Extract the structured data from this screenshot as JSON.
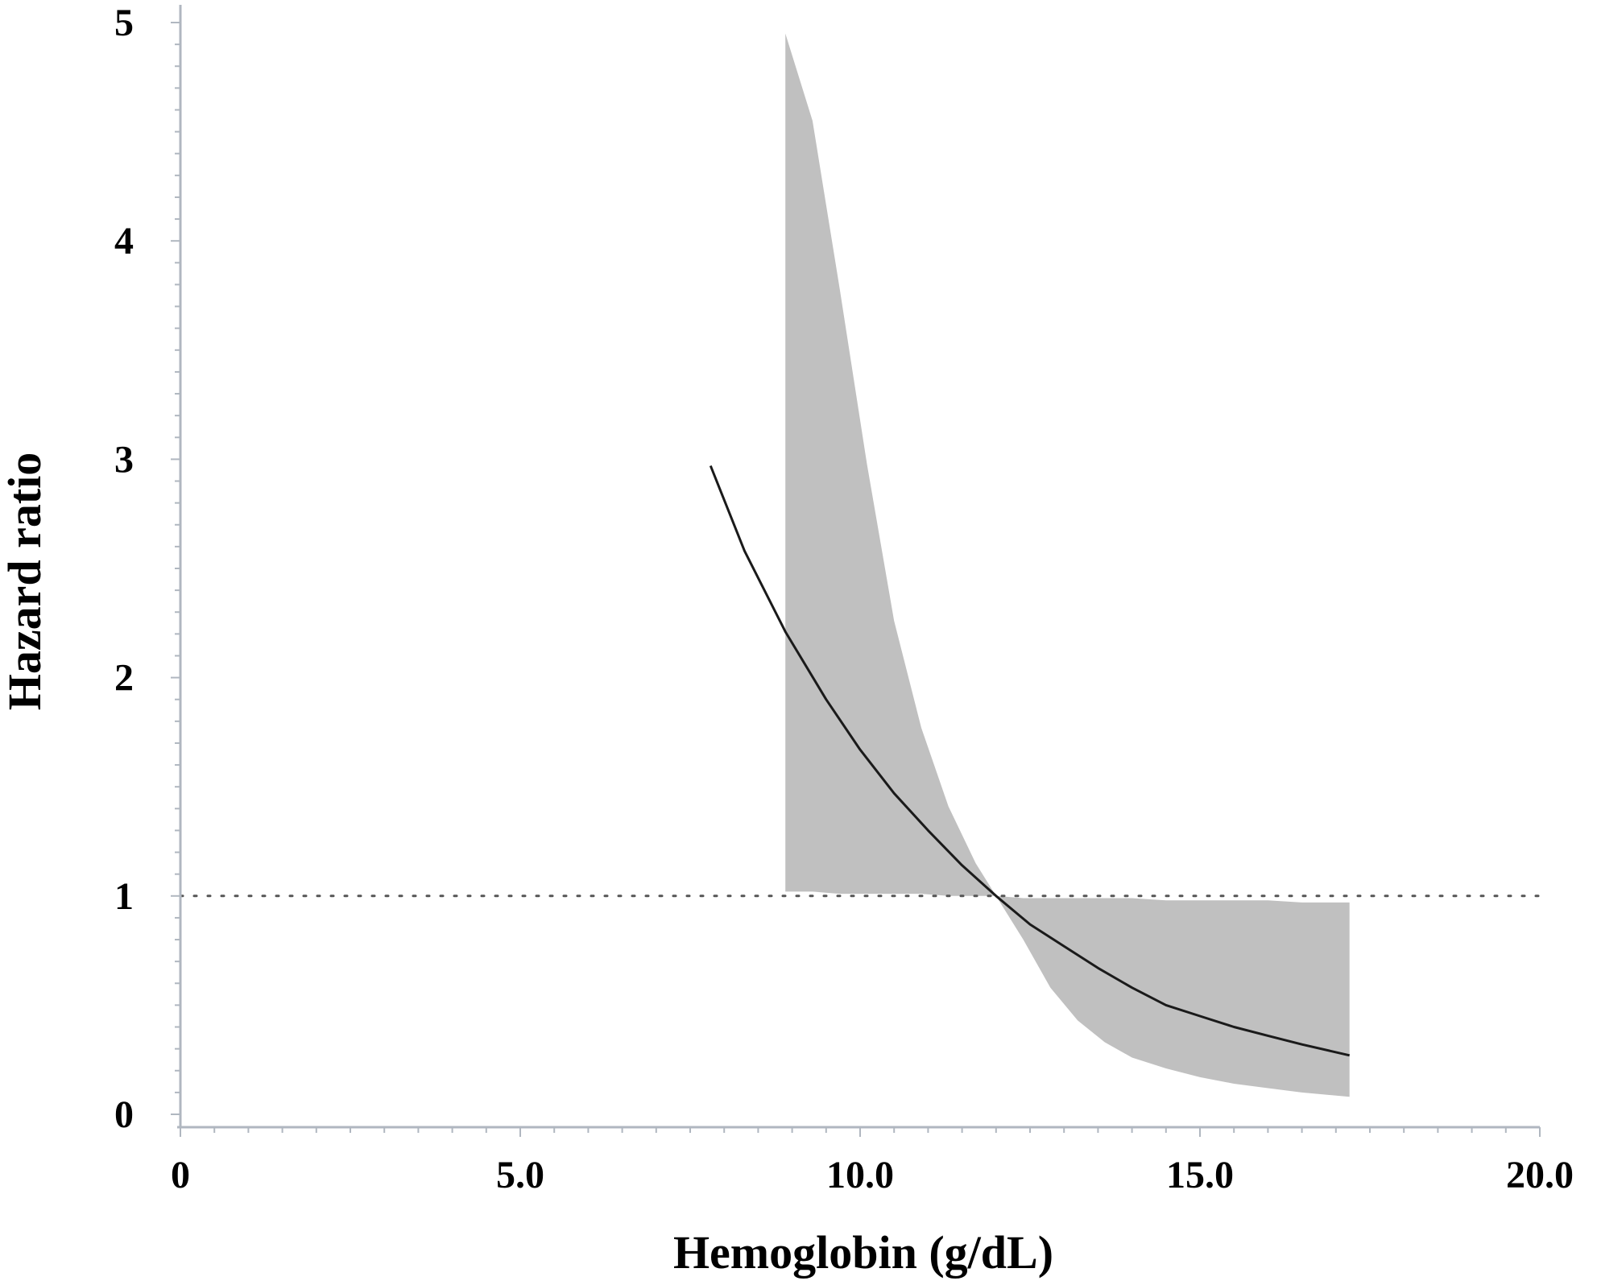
{
  "chart_data": {
    "type": "line",
    "title": "",
    "xlabel": "Hemoglobin (g/dL)",
    "ylabel": "Hazard ratio",
    "xlim": [
      0,
      20
    ],
    "ylim": [
      0,
      5
    ],
    "x_ticks": [
      0,
      5,
      10,
      15,
      20
    ],
    "x_tick_labels": [
      "0",
      "5.0",
      "10.0",
      "15.0",
      "20.0"
    ],
    "y_ticks": [
      0,
      1,
      2,
      3,
      4,
      5
    ],
    "y_tick_labels": [
      "0",
      "1",
      "2",
      "3",
      "4",
      "5"
    ],
    "reference_line": {
      "y": 1,
      "style": "dotted"
    },
    "series": [
      {
        "role": "hazard-ratio",
        "x": [
          7.8,
          8.3,
          8.9,
          9.5,
          10.0,
          10.5,
          11.0,
          11.5,
          12.0,
          12.5,
          13.0,
          13.5,
          14.0,
          14.5,
          15.0,
          15.5,
          16.0,
          16.5,
          17.2
        ],
        "y": [
          2.97,
          2.58,
          2.21,
          1.9,
          1.67,
          1.47,
          1.3,
          1.14,
          1.0,
          0.87,
          0.77,
          0.67,
          0.58,
          0.5,
          0.45,
          0.4,
          0.36,
          0.32,
          0.27
        ]
      }
    ],
    "confidence_band": {
      "x": [
        8.9,
        9.3,
        9.7,
        10.1,
        10.5,
        10.9,
        11.3,
        11.7,
        12.0,
        12.4,
        12.8,
        13.2,
        13.6,
        14.0,
        14.5,
        15.0,
        15.5,
        16.0,
        16.5,
        17.2
      ],
      "upper": [
        4.95,
        4.55,
        3.78,
        2.98,
        2.26,
        1.77,
        1.41,
        1.15,
        1.0,
        0.99,
        0.99,
        0.99,
        0.99,
        0.99,
        0.98,
        0.98,
        0.98,
        0.98,
        0.97,
        0.97
      ],
      "lower": [
        1.02,
        1.02,
        1.01,
        1.01,
        1.01,
        1.01,
        1.0,
        1.0,
        1.0,
        0.8,
        0.58,
        0.43,
        0.33,
        0.26,
        0.21,
        0.17,
        0.14,
        0.12,
        0.1,
        0.08
      ]
    },
    "colors": {
      "line": "#1a1a1a",
      "band": "#c0c0c0",
      "axis": "#b0b7c0",
      "reference": "#555555"
    },
    "grid": false
  }
}
